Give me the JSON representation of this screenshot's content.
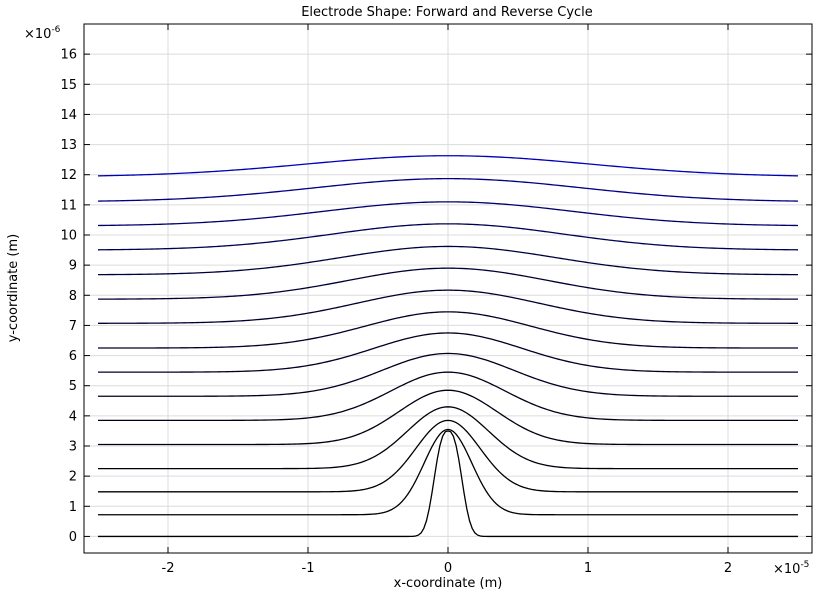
{
  "chart_data": {
    "type": "line",
    "title": "Electrode Shape: Forward and Reverse Cycle",
    "xlabel": "x-coordinate (m)",
    "ylabel": "y-coordinate (m)",
    "x_multiplier_label": "×10",
    "x_multiplier_exp": "-5",
    "y_multiplier_label": "×10",
    "y_multiplier_exp": "-6",
    "xlim": [
      -2.6,
      2.6
    ],
    "ylim": [
      -0.55,
      17.0
    ],
    "x_ticks": [
      -2,
      -1,
      0,
      1,
      2
    ],
    "y_ticks": [
      0,
      1,
      2,
      3,
      4,
      5,
      6,
      7,
      8,
      9,
      10,
      11,
      12,
      13,
      14,
      15,
      16
    ],
    "x_tick_labels": [
      "-2",
      "-1",
      "0",
      "1",
      "2"
    ],
    "y_tick_labels": [
      "0",
      "1",
      "2",
      "3",
      "4",
      "5",
      "6",
      "7",
      "8",
      "9",
      "10",
      "11",
      "12",
      "13",
      "14",
      "15",
      "16"
    ],
    "grid": true,
    "x_range_of_curves": [
      -2.5,
      2.5
    ],
    "curve_profile": "gaussian bump centered at x = 0 on a flat baseline",
    "series": [
      {
        "baseline": 0.0,
        "peak": 3.5,
        "width": 0.12,
        "sharp": true,
        "color": "#000000"
      },
      {
        "baseline": 0.72,
        "peak": 3.55,
        "width": 0.17,
        "color": "#000000"
      },
      {
        "baseline": 1.48,
        "peak": 3.85,
        "width": 0.23,
        "color": "#000005"
      },
      {
        "baseline": 2.25,
        "peak": 4.3,
        "width": 0.29,
        "color": "#00000b"
      },
      {
        "baseline": 3.05,
        "peak": 4.85,
        "width": 0.35,
        "color": "#000011"
      },
      {
        "baseline": 3.85,
        "peak": 5.45,
        "width": 0.41,
        "color": "#000018"
      },
      {
        "baseline": 4.65,
        "peak": 6.07,
        "width": 0.47,
        "color": "#00001e"
      },
      {
        "baseline": 5.45,
        "peak": 6.75,
        "width": 0.53,
        "color": "#000024"
      },
      {
        "baseline": 6.25,
        "peak": 7.45,
        "width": 0.59,
        "color": "#00002a"
      },
      {
        "baseline": 7.07,
        "peak": 8.17,
        "width": 0.65,
        "color": "#000030"
      },
      {
        "baseline": 7.87,
        "peak": 8.9,
        "width": 0.71,
        "color": "#000036"
      },
      {
        "baseline": 8.68,
        "peak": 9.62,
        "width": 0.77,
        "color": "#00003d"
      },
      {
        "baseline": 9.5,
        "peak": 10.37,
        "width": 0.83,
        "color": "#000055"
      },
      {
        "baseline": 10.3,
        "peak": 11.1,
        "width": 0.89,
        "color": "#00006d"
      },
      {
        "baseline": 11.1,
        "peak": 11.87,
        "width": 0.95,
        "color": "#000085"
      },
      {
        "baseline": 11.93,
        "peak": 12.63,
        "width": 1.01,
        "color": "#0000b8"
      }
    ]
  }
}
